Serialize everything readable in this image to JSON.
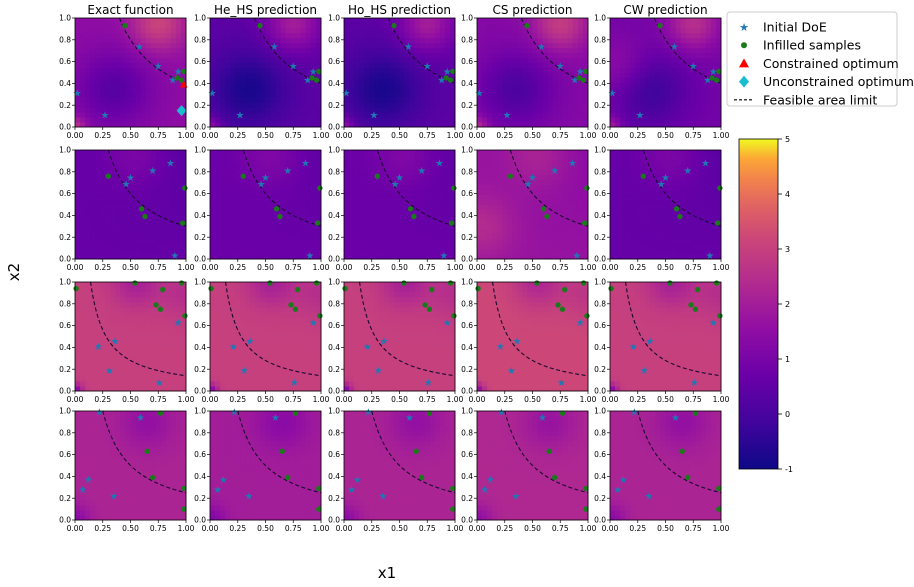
{
  "chart_data": {
    "type": "heatmap",
    "column_titles": [
      "Exact function",
      "He_HS prediction",
      "Ho_HS prediction",
      "CS prediction",
      "CW prediction"
    ],
    "xlabel": "x1",
    "ylabel": "x2",
    "xlim": [
      0,
      1
    ],
    "ylim": [
      0,
      1
    ],
    "x_ticks": [
      "0.00",
      "0.25",
      "0.50",
      "0.75",
      "1.00"
    ],
    "y_ticks": [
      "0.0",
      "0.2",
      "0.4",
      "0.6",
      "0.8",
      "1.0"
    ],
    "colorbar": {
      "min": -1,
      "max": 5,
      "ticks": [
        "-1",
        "0",
        "1",
        "2",
        "3",
        "4",
        "5"
      ],
      "colormap": "plasma"
    },
    "legend": {
      "location": "upper right",
      "entries": [
        {
          "label": "Initial DoE",
          "marker": "star",
          "color": "#1f77b4"
        },
        {
          "label": "Infilled samples",
          "marker": "circle",
          "color": "#1a7a1a"
        },
        {
          "label": "Constrained optimum",
          "marker": "triangle",
          "color": "#ff0000"
        },
        {
          "label": "Unconstrained optimum",
          "marker": "diamond",
          "color": "#17becf"
        },
        {
          "label": "Feasible area limit",
          "marker": "dashed-line",
          "color": "#000000"
        }
      ]
    },
    "rows": [
      {
        "field_level": [
          1.5,
          0.4,
          0.4,
          1.3,
          0.9
        ],
        "constraint_c": 0.4,
        "initial_doe": [
          [
            0.02,
            0.31
          ],
          [
            0.27,
            0.11
          ],
          [
            0.58,
            0.74
          ],
          [
            0.75,
            0.56
          ],
          [
            0.88,
            0.43
          ],
          [
            0.93,
            0.51
          ]
        ],
        "infilled": [
          [
            0.45,
            0.93
          ],
          [
            0.92,
            0.45
          ],
          [
            0.96,
            0.43
          ],
          [
            0.98,
            0.51
          ]
        ],
        "constrained_optimum": [
          0.98,
          0.39
        ],
        "unconstrained_optimum": [
          0.96,
          0.15
        ]
      },
      {
        "field_level": [
          0.6,
          0.7,
          0.7,
          1.7,
          0.6
        ],
        "constraint_c": 0.3,
        "initial_doe": [
          [
            0.46,
            0.69
          ],
          [
            0.5,
            0.75
          ],
          [
            0.7,
            0.81
          ],
          [
            0.86,
            0.88
          ],
          [
            0.9,
            0.03
          ]
        ],
        "infilled": [
          [
            0.3,
            0.76
          ],
          [
            0.63,
            0.39
          ],
          [
            0.97,
            0.33
          ],
          [
            0.99,
            0.65
          ],
          [
            0.6,
            0.46
          ]
        ],
        "constrained_optimum": null,
        "unconstrained_optimum": null
      },
      {
        "field_level": [
          3.0,
          3.0,
          3.0,
          3.2,
          3.0
        ],
        "constraint_c": 0.14,
        "initial_doe": [
          [
            0.21,
            0.41
          ],
          [
            0.31,
            0.19
          ],
          [
            0.36,
            0.46
          ],
          [
            0.76,
            0.08
          ],
          [
            0.93,
            0.63
          ]
        ],
        "infilled": [
          [
            0.01,
            0.94
          ],
          [
            0.54,
            0.99
          ],
          [
            0.96,
            0.99
          ],
          [
            0.73,
            0.79
          ],
          [
            0.79,
            0.93
          ],
          [
            0.77,
            0.75
          ],
          [
            0.99,
            0.69
          ]
        ],
        "constrained_optimum": null,
        "unconstrained_optimum": null
      },
      {
        "field_level": [
          2.2,
          2.0,
          2.2,
          2.3,
          2.2
        ],
        "constraint_c": 0.25,
        "initial_doe": [
          [
            0.07,
            0.28
          ],
          [
            0.12,
            0.37
          ],
          [
            0.35,
            0.22
          ],
          [
            0.59,
            0.94
          ],
          [
            0.22,
            0.99
          ]
        ],
        "infilled": [
          [
            0.7,
            0.39
          ],
          [
            0.98,
            0.1
          ],
          [
            0.65,
            0.63
          ],
          [
            0.77,
            0.98
          ],
          [
            0.98,
            0.29
          ]
        ],
        "constrained_optimum": null,
        "unconstrained_optimum": null
      }
    ]
  }
}
